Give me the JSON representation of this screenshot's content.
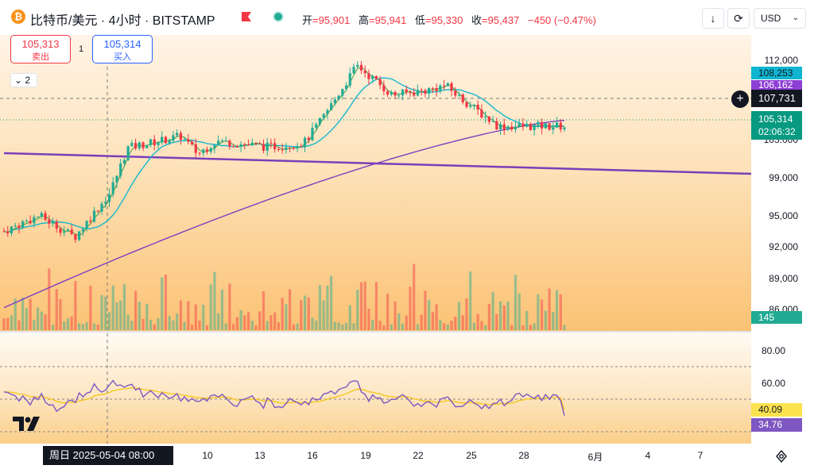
{
  "header": {
    "symbol_icon": "bitcoin-icon",
    "title": "比特币/美元 · 4小时 · BITSTAMP",
    "ohlc": {
      "open_label": "开",
      "open": "=95,901",
      "high_label": "高",
      "high": "=95,941",
      "low_label": "低",
      "low": "=95,330",
      "close_label": "收",
      "close": "=95,437",
      "change": "−450 (−0.47%)"
    },
    "download_icon": "download-icon",
    "replay_icon": "refresh-icon",
    "currency": "USD"
  },
  "trade": {
    "sell_price": "105,313",
    "sell_label": "卖出",
    "spread": "1",
    "buy_price": "105,314",
    "buy_label": "买入"
  },
  "indicators_toggle": "2",
  "price_scale": {
    "ticks": [
      "112,000",
      "99,000",
      "95,000",
      "92,000",
      "89,000",
      "86,000"
    ],
    "partial_tick": "103,000",
    "tag_ma_fast": "108,253",
    "tag_ma_slow": "106,162",
    "tag_crosshair": "107,731",
    "tag_last_price": "105,314",
    "tag_countdown": "02:06:32",
    "tag_volume": "145"
  },
  "rsi_scale": {
    "ticks": [
      "80.00",
      "60.00"
    ],
    "tag_signal": "40.09",
    "tag_rsi": "34.76"
  },
  "time_axis": {
    "cursor_label": "周日  2025-05-04   08:00",
    "ticks": [
      "10",
      "13",
      "16",
      "19",
      "22",
      "25",
      "28",
      "6月",
      "4",
      "7"
    ]
  },
  "colors": {
    "up": "#22ab94",
    "down": "#f23645",
    "ma_fast": "#16b7cf",
    "ma_slow": "#7e3fbf",
    "rsi": "#7e57c2",
    "rsi_signal": "#f5c518",
    "trendline": "#7a3fb8"
  },
  "chart_data": {
    "type": "candlestick",
    "timeframe": "4h",
    "ylim": [
      85000,
      113500
    ],
    "x_ticks": [
      "10",
      "13",
      "16",
      "19",
      "22",
      "25",
      "28",
      "6月",
      "4",
      "7"
    ],
    "approx_close_path": [
      {
        "x": "2025-05-02",
        "y": 94600
      },
      {
        "x": "2025-05-04",
        "y": 96200
      },
      {
        "x": "2025-05-06",
        "y": 94000
      },
      {
        "x": "2025-05-08",
        "y": 98500
      },
      {
        "x": "2025-05-09",
        "y": 103100
      },
      {
        "x": "2025-05-12",
        "y": 104300
      },
      {
        "x": "2025-05-13",
        "y": 102500
      },
      {
        "x": "2025-05-14",
        "y": 103800
      },
      {
        "x": "2025-05-17",
        "y": 103200
      },
      {
        "x": "2025-05-19",
        "y": 103600
      },
      {
        "x": "2025-05-20",
        "y": 106000
      },
      {
        "x": "2025-05-22",
        "y": 111500
      },
      {
        "x": "2025-05-24",
        "y": 108500
      },
      {
        "x": "2025-05-26",
        "y": 109000
      },
      {
        "x": "2025-05-27",
        "y": 109500
      },
      {
        "x": "2025-05-28",
        "y": 108000
      },
      {
        "x": "2025-05-30",
        "y": 105314
      }
    ],
    "rsi_ticks": [
      "80.00",
      "60.00"
    ],
    "rsi_last": 34.76,
    "rsi_signal_last": 40.09,
    "volume_last": 145
  }
}
